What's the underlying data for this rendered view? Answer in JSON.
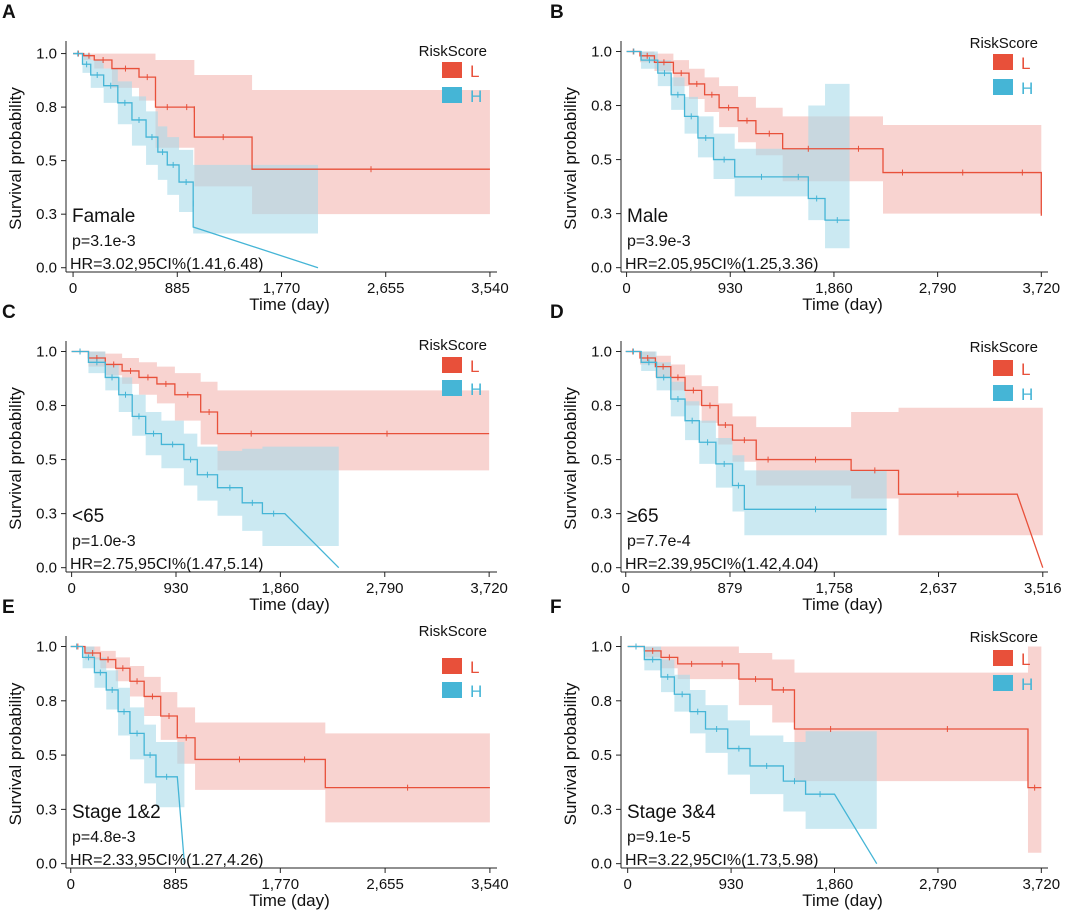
{
  "figure": {
    "axis_common": {
      "ylabel": "Survival probability",
      "xlabel": "Time (day)",
      "legend_title": "RiskScore"
    },
    "groups": [
      {
        "key": "L",
        "label": "L",
        "color": "#e8503a",
        "band": "#f4b6b0"
      },
      {
        "key": "H",
        "label": "H",
        "color": "#45b5d6",
        "band": "#a9dbea"
      }
    ]
  },
  "chart_data": [
    {
      "panel": "A",
      "type": "line",
      "subtitle": "Famale",
      "pvalue": "p=3.1e-3",
      "hr": "HR=3.02,95CI%(1.41,6.48)",
      "xlabel": "Time (day)",
      "ylabel": "Survival probability",
      "xlim": [
        -60,
        3600
      ],
      "ylim": [
        -0.02,
        1.04
      ],
      "xticks": [
        0,
        885,
        1770,
        2655,
        3540
      ],
      "xtick_labels": [
        "0",
        "885",
        "1,770",
        "2,655",
        "3,540"
      ],
      "yticks": [
        0.0,
        0.25,
        0.5,
        0.75,
        1.0
      ],
      "ytick_labels": [
        "0.0",
        "0.3",
        "0.5",
        "0.8",
        "1.0"
      ],
      "series": [
        {
          "name": "L",
          "x": [
            0,
            90,
            180,
            330,
            560,
            700,
            900,
            1030,
            1030,
            1520,
            3540
          ],
          "y": [
            1.0,
            0.99,
            0.97,
            0.93,
            0.89,
            0.75,
            0.75,
            0.74,
            0.61,
            0.46,
            0.46
          ],
          "lower": [
            1.0,
            0.97,
            0.93,
            0.84,
            0.78,
            0.56,
            0.56,
            0.55,
            0.38,
            0.25,
            0.25
          ],
          "upper": [
            1.0,
            1.0,
            1.0,
            1.0,
            1.0,
            0.97,
            0.97,
            0.96,
            0.9,
            0.83,
            0.83
          ]
        },
        {
          "name": "H",
          "x": [
            0,
            80,
            150,
            260,
            380,
            500,
            620,
            720,
            800,
            900,
            1020,
            1020,
            2080
          ],
          "y": [
            1.0,
            0.95,
            0.9,
            0.85,
            0.77,
            0.69,
            0.61,
            0.54,
            0.48,
            0.4,
            0.3,
            0.19,
            0.0
          ],
          "lower": [
            1.0,
            0.91,
            0.84,
            0.77,
            0.67,
            0.57,
            0.48,
            0.41,
            0.34,
            0.26,
            0.16,
            0.16,
            0.0
          ],
          "upper": [
            1.0,
            1.0,
            0.97,
            0.93,
            0.87,
            0.8,
            0.73,
            0.66,
            0.61,
            0.55,
            0.48,
            0.48,
            0.0
          ]
        }
      ]
    },
    {
      "panel": "B",
      "type": "line",
      "subtitle": "Male",
      "pvalue": "p=3.9e-3",
      "hr": "HR=2.05,95CI%(1.25,3.36)",
      "xlabel": "Time (day)",
      "ylabel": "Survival probability",
      "xlim": [
        -50,
        3780
      ],
      "ylim": [
        -0.02,
        1.03
      ],
      "xticks": [
        0,
        930,
        1860,
        2790,
        3720
      ],
      "xtick_labels": [
        "0",
        "930",
        "1,860",
        "2,790",
        "3,720"
      ],
      "yticks": [
        0.0,
        0.25,
        0.5,
        0.75,
        1.0
      ],
      "ytick_labels": [
        "0.0",
        "0.3",
        "0.5",
        "0.8",
        "1.0"
      ],
      "series": [
        {
          "name": "L",
          "x": [
            0,
            120,
            250,
            420,
            560,
            700,
            830,
            1000,
            1160,
            1400,
            1860,
            2300,
            2650,
            3380,
            3720
          ],
          "y": [
            1.0,
            0.98,
            0.95,
            0.9,
            0.85,
            0.8,
            0.74,
            0.68,
            0.62,
            0.55,
            0.55,
            0.44,
            0.44,
            0.44,
            0.24
          ],
          "lower": [
            1.0,
            0.95,
            0.91,
            0.84,
            0.78,
            0.72,
            0.65,
            0.58,
            0.52,
            0.4,
            0.4,
            0.25,
            0.25,
            0.25,
            0.05
          ],
          "upper": [
            1.0,
            1.0,
            0.99,
            0.96,
            0.92,
            0.88,
            0.84,
            0.79,
            0.74,
            0.7,
            0.7,
            0.66,
            0.66,
            0.66,
            0.92
          ]
        },
        {
          "name": "H",
          "x": [
            0,
            130,
            280,
            400,
            520,
            640,
            780,
            970,
            1450,
            1630,
            1780,
            2000
          ],
          "y": [
            1.0,
            0.96,
            0.9,
            0.8,
            0.7,
            0.6,
            0.5,
            0.42,
            0.42,
            0.32,
            0.22,
            0.22
          ],
          "lower": [
            1.0,
            0.92,
            0.84,
            0.73,
            0.62,
            0.51,
            0.41,
            0.33,
            0.33,
            0.22,
            0.09,
            0.09
          ],
          "upper": [
            1.0,
            1.0,
            0.96,
            0.88,
            0.79,
            0.7,
            0.62,
            0.55,
            0.55,
            0.75,
            0.85,
            0.85
          ]
        }
      ]
    },
    {
      "panel": "C",
      "type": "line",
      "subtitle": "<65",
      "pvalue": "p=1.0e-3",
      "hr": "HR=2.75,95CI%(1.47,5.14)",
      "xlabel": "Time (day)",
      "ylabel": "Survival probability",
      "xlim": [
        -50,
        3790
      ],
      "ylim": [
        -0.02,
        1.03
      ],
      "xticks": [
        0,
        930,
        1860,
        2790,
        3720
      ],
      "xtick_labels": [
        "0",
        "930",
        "1,860",
        "2,790",
        "3,720"
      ],
      "yticks": [
        0.0,
        0.25,
        0.5,
        0.75,
        1.0
      ],
      "ytick_labels": [
        "0.0",
        "0.3",
        "0.5",
        "0.8",
        "1.0"
      ],
      "series": [
        {
          "name": "L",
          "x": [
            0,
            150,
            300,
            450,
            600,
            760,
            920,
            1150,
            1300,
            1900,
            3720
          ],
          "y": [
            1.0,
            0.97,
            0.94,
            0.91,
            0.88,
            0.85,
            0.8,
            0.72,
            0.62,
            0.62,
            0.62
          ],
          "lower": [
            1.0,
            0.93,
            0.89,
            0.85,
            0.8,
            0.76,
            0.68,
            0.57,
            0.45,
            0.45,
            0.45
          ],
          "upper": [
            1.0,
            1.0,
            0.99,
            0.97,
            0.95,
            0.93,
            0.9,
            0.86,
            0.82,
            0.82,
            0.82
          ]
        },
        {
          "name": "H",
          "x": [
            0,
            150,
            300,
            420,
            540,
            660,
            800,
            1000,
            1120,
            1300,
            1520,
            1700,
            1900,
            2380
          ],
          "y": [
            1.0,
            0.95,
            0.88,
            0.8,
            0.7,
            0.62,
            0.57,
            0.5,
            0.43,
            0.37,
            0.3,
            0.25,
            0.25,
            0.0
          ],
          "lower": [
            1.0,
            0.9,
            0.82,
            0.72,
            0.61,
            0.52,
            0.46,
            0.38,
            0.31,
            0.24,
            0.17,
            0.1,
            0.1,
            0.0
          ],
          "upper": [
            1.0,
            1.0,
            0.94,
            0.88,
            0.8,
            0.72,
            0.68,
            0.62,
            0.56,
            0.54,
            0.55,
            0.56,
            0.56,
            0.0
          ]
        }
      ]
    },
    {
      "panel": "D",
      "type": "line",
      "subtitle": "≥65",
      "pvalue": "p=7.7e-4",
      "hr": "HR=2.39,95CI%(1.42,4.04)",
      "xlabel": "Time (day)",
      "ylabel": "Survival probability",
      "xlim": [
        -40,
        3560
      ],
      "ylim": [
        -0.02,
        1.03
      ],
      "xticks": [
        0,
        879,
        1758,
        2637,
        3516
      ],
      "xtick_labels": [
        "0",
        "879",
        "1,758",
        "2,637",
        "3,516"
      ],
      "yticks": [
        0.0,
        0.25,
        0.5,
        0.75,
        1.0
      ],
      "ytick_labels": [
        "0.0",
        "0.3",
        "0.5",
        "0.8",
        "1.0"
      ],
      "series": [
        {
          "name": "L",
          "x": [
            0,
            120,
            250,
            380,
            500,
            640,
            780,
            900,
            1100,
            1300,
            1900,
            2300,
            3300,
            3516
          ],
          "y": [
            1.0,
            0.97,
            0.93,
            0.88,
            0.82,
            0.75,
            0.66,
            0.59,
            0.5,
            0.5,
            0.45,
            0.34,
            0.34,
            0.0
          ],
          "lower": [
            1.0,
            0.94,
            0.88,
            0.82,
            0.75,
            0.67,
            0.57,
            0.49,
            0.38,
            0.38,
            0.32,
            0.15,
            0.15,
            0.0
          ],
          "upper": [
            1.0,
            1.0,
            0.98,
            0.94,
            0.89,
            0.84,
            0.76,
            0.7,
            0.65,
            0.65,
            0.72,
            0.74,
            0.74,
            0.0
          ]
        },
        {
          "name": "H",
          "x": [
            0,
            130,
            260,
            380,
            500,
            620,
            760,
            900,
            1000,
            2200
          ],
          "y": [
            1.0,
            0.95,
            0.88,
            0.78,
            0.68,
            0.58,
            0.48,
            0.38,
            0.27,
            0.27
          ],
          "lower": [
            1.0,
            0.91,
            0.82,
            0.7,
            0.59,
            0.48,
            0.37,
            0.26,
            0.15,
            0.15
          ],
          "upper": [
            1.0,
            1.0,
            0.95,
            0.86,
            0.77,
            0.68,
            0.6,
            0.52,
            0.45,
            0.45
          ]
        }
      ]
    },
    {
      "panel": "E",
      "type": "line",
      "subtitle": "Stage 1&2",
      "pvalue": "p=4.8e-3",
      "hr": "HR=2.33,95CI%(1.27,4.26)",
      "xlabel": "Time (day)",
      "ylabel": "Survival probability",
      "xlim": [
        -40,
        3600
      ],
      "ylim": [
        -0.02,
        1.03
      ],
      "xticks": [
        0,
        885,
        1770,
        2655,
        3540
      ],
      "xtick_labels": [
        "0",
        "885",
        "1,770",
        "2,655",
        "3,540"
      ],
      "yticks": [
        0.0,
        0.25,
        0.5,
        0.75,
        1.0
      ],
      "ytick_labels": [
        "0.0",
        "0.3",
        "0.5",
        "0.8",
        "1.0"
      ],
      "series": [
        {
          "name": "L",
          "x": [
            0,
            120,
            250,
            380,
            500,
            620,
            760,
            900,
            1050,
            1800,
            2150,
            3540
          ],
          "y": [
            1.0,
            0.97,
            0.94,
            0.9,
            0.84,
            0.77,
            0.68,
            0.58,
            0.48,
            0.48,
            0.35,
            0.35
          ],
          "lower": [
            1.0,
            0.94,
            0.9,
            0.84,
            0.77,
            0.68,
            0.57,
            0.46,
            0.34,
            0.34,
            0.19,
            0.19
          ],
          "upper": [
            1.0,
            1.0,
            0.98,
            0.95,
            0.91,
            0.86,
            0.79,
            0.72,
            0.65,
            0.65,
            0.6,
            0.6
          ]
        },
        {
          "name": "H",
          "x": [
            0,
            100,
            200,
            300,
            400,
            500,
            620,
            720,
            900,
            960
          ],
          "y": [
            1.0,
            0.95,
            0.88,
            0.8,
            0.7,
            0.6,
            0.5,
            0.4,
            0.4,
            0.0
          ],
          "lower": [
            1.0,
            0.9,
            0.81,
            0.71,
            0.59,
            0.48,
            0.37,
            0.26,
            0.26,
            0.0
          ],
          "upper": [
            1.0,
            1.0,
            0.95,
            0.89,
            0.81,
            0.72,
            0.64,
            0.56,
            0.56,
            0.0
          ]
        }
      ]
    },
    {
      "panel": "F",
      "type": "line",
      "subtitle": "Stage 3&4",
      "pvalue": "p=9.1e-5",
      "hr": "HR=3.22,95CI%(1.73,5.98)",
      "xlabel": "Time (day)",
      "ylabel": "Survival probability",
      "xlim": [
        -60,
        3780
      ],
      "ylim": [
        -0.02,
        1.03
      ],
      "xticks": [
        0,
        930,
        1860,
        2790,
        3720
      ],
      "xtick_labels": [
        "0",
        "930",
        "1,860",
        "2,790",
        "3,720"
      ],
      "yticks": [
        0.0,
        0.25,
        0.5,
        0.75,
        1.0
      ],
      "ytick_labels": [
        "0.0",
        "0.3",
        "0.5",
        "0.8",
        "1.0"
      ],
      "series": [
        {
          "name": "L",
          "x": [
            0,
            150,
            300,
            450,
            700,
            1000,
            1300,
            1500,
            2150,
            3600,
            3720
          ],
          "y": [
            1.0,
            0.98,
            0.95,
            0.92,
            0.92,
            0.85,
            0.8,
            0.62,
            0.62,
            0.35,
            0.35
          ],
          "lower": [
            1.0,
            0.95,
            0.9,
            0.85,
            0.85,
            0.73,
            0.65,
            0.38,
            0.38,
            0.05,
            0.05
          ],
          "upper": [
            1.0,
            1.0,
            1.0,
            1.0,
            1.0,
            0.97,
            0.94,
            0.88,
            0.88,
            1.0,
            1.0
          ]
        },
        {
          "name": "H",
          "x": [
            0,
            150,
            300,
            420,
            560,
            700,
            900,
            1100,
            1400,
            1600,
            1860,
            2240
          ],
          "y": [
            1.0,
            0.94,
            0.86,
            0.78,
            0.7,
            0.62,
            0.53,
            0.45,
            0.38,
            0.32,
            0.32,
            0.0
          ],
          "lower": [
            1.0,
            0.89,
            0.79,
            0.7,
            0.6,
            0.51,
            0.41,
            0.32,
            0.24,
            0.16,
            0.16,
            0.0
          ],
          "upper": [
            1.0,
            1.0,
            0.94,
            0.87,
            0.8,
            0.73,
            0.66,
            0.59,
            0.56,
            0.61,
            0.61,
            0.0
          ]
        }
      ]
    }
  ]
}
